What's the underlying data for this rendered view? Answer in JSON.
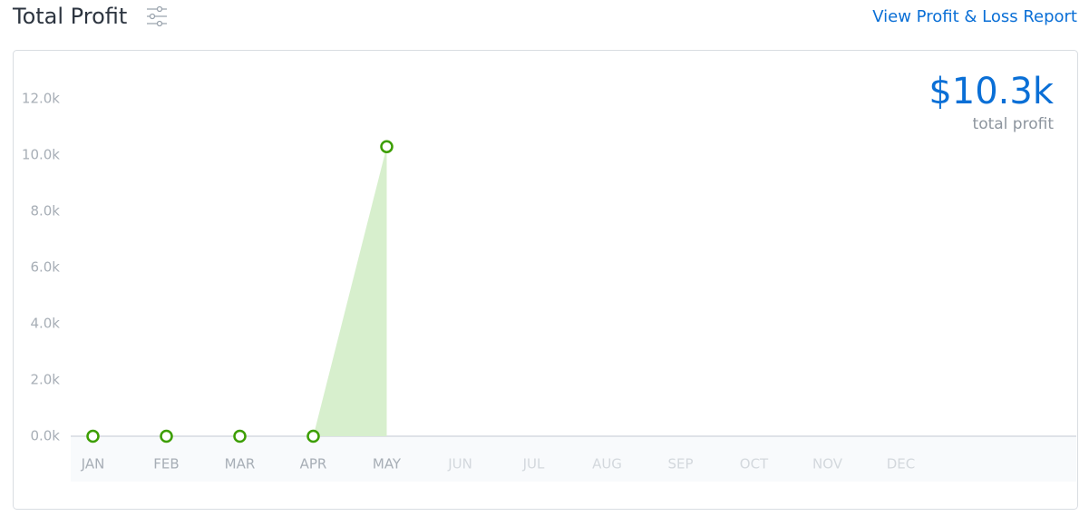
{
  "header": {
    "title": "Total Profit",
    "link": "View Profit & Loss Report"
  },
  "chart_data": {
    "type": "area",
    "categories": [
      "JAN",
      "FEB",
      "MAR",
      "APR",
      "MAY",
      "JUN",
      "JUL",
      "AUG",
      "SEP",
      "OCT",
      "NOV",
      "DEC"
    ],
    "values": [
      0,
      0,
      0,
      0,
      10300,
      null,
      null,
      null,
      null,
      null,
      null,
      null
    ],
    "color": "#3c9e00",
    "fill_color": "#d7efcd",
    "ylim": [
      0,
      12000
    ],
    "yticks": [
      {
        "value": 0,
        "label": "0.0k"
      },
      {
        "value": 2000,
        "label": "2.0k"
      },
      {
        "value": 4000,
        "label": "4.0k"
      },
      {
        "value": 6000,
        "label": "6.0k"
      },
      {
        "value": 8000,
        "label": "8.0k"
      },
      {
        "value": 10000,
        "label": "10.0k"
      },
      {
        "value": 12000,
        "label": "12.0k"
      }
    ],
    "total_value": "$10.3k",
    "total_label": "total profit"
  }
}
